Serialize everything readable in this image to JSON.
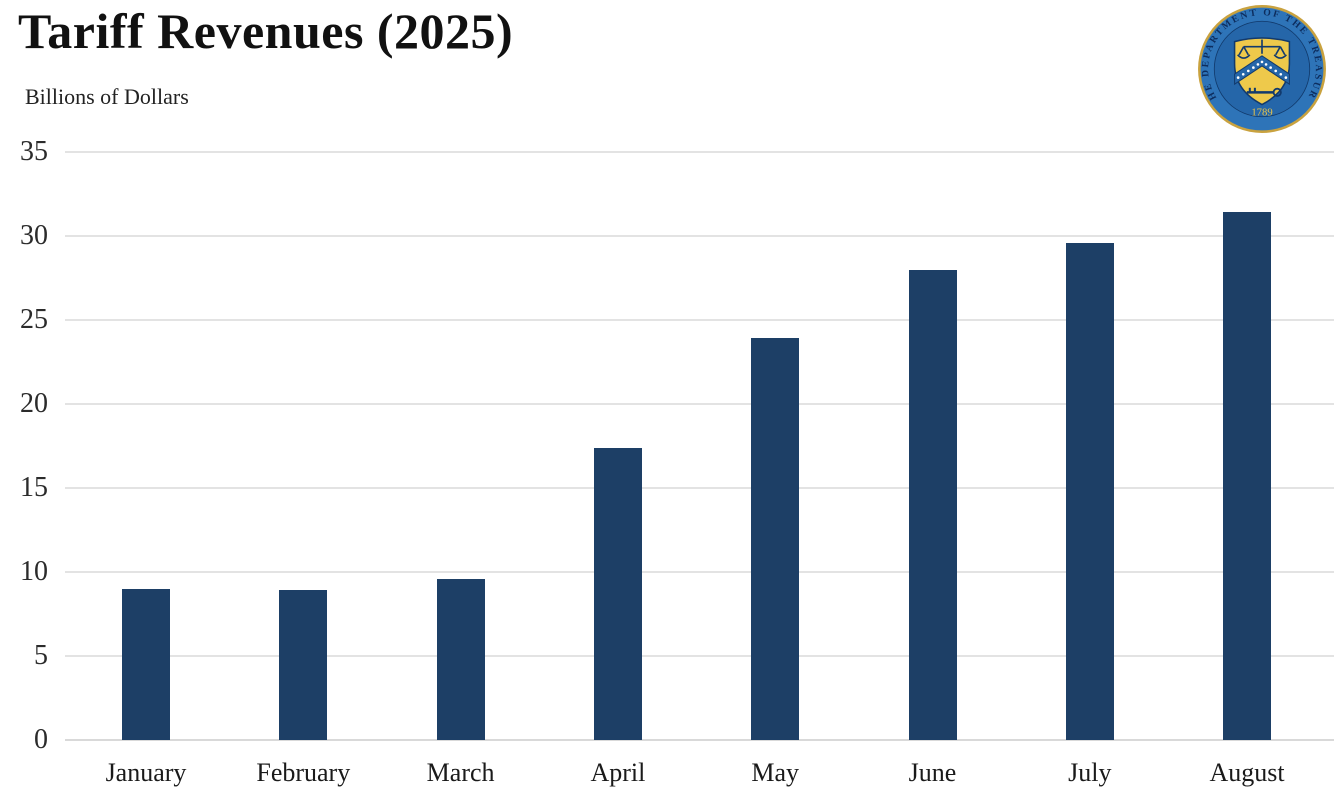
{
  "header": {
    "title": "Tariff Revenues (2025)",
    "subtitle": "Billions of Dollars"
  },
  "logo": {
    "name": "us-treasury-seal",
    "ring_text": "THE DEPARTMENT OF THE TREASURY",
    "year": "1789",
    "colors": {
      "rim_gold": "#c9a23f",
      "ring_blue": "#2e74b8",
      "inner_blue": "#2566a9",
      "shield_gold": "#eec94b",
      "dark_navy": "#123a6d"
    }
  },
  "chart_data": {
    "type": "bar",
    "title": "Tariff Revenues (2025)",
    "ylabel": "Billions of Dollars",
    "xlabel": "",
    "categories": [
      "January",
      "February",
      "March",
      "April",
      "May",
      "June",
      "July",
      "August"
    ],
    "values": [
      9.0,
      8.9,
      9.6,
      17.4,
      23.9,
      28.0,
      29.6,
      31.4
    ],
    "ylim": [
      0,
      35
    ],
    "yticks": [
      0,
      5,
      10,
      15,
      20,
      25,
      30,
      35
    ],
    "grid": true,
    "legend": "none",
    "bar_color": "#1d3f66",
    "gridline_color": "#e3e3e3",
    "axis_text_color": "#2b2b2b"
  }
}
